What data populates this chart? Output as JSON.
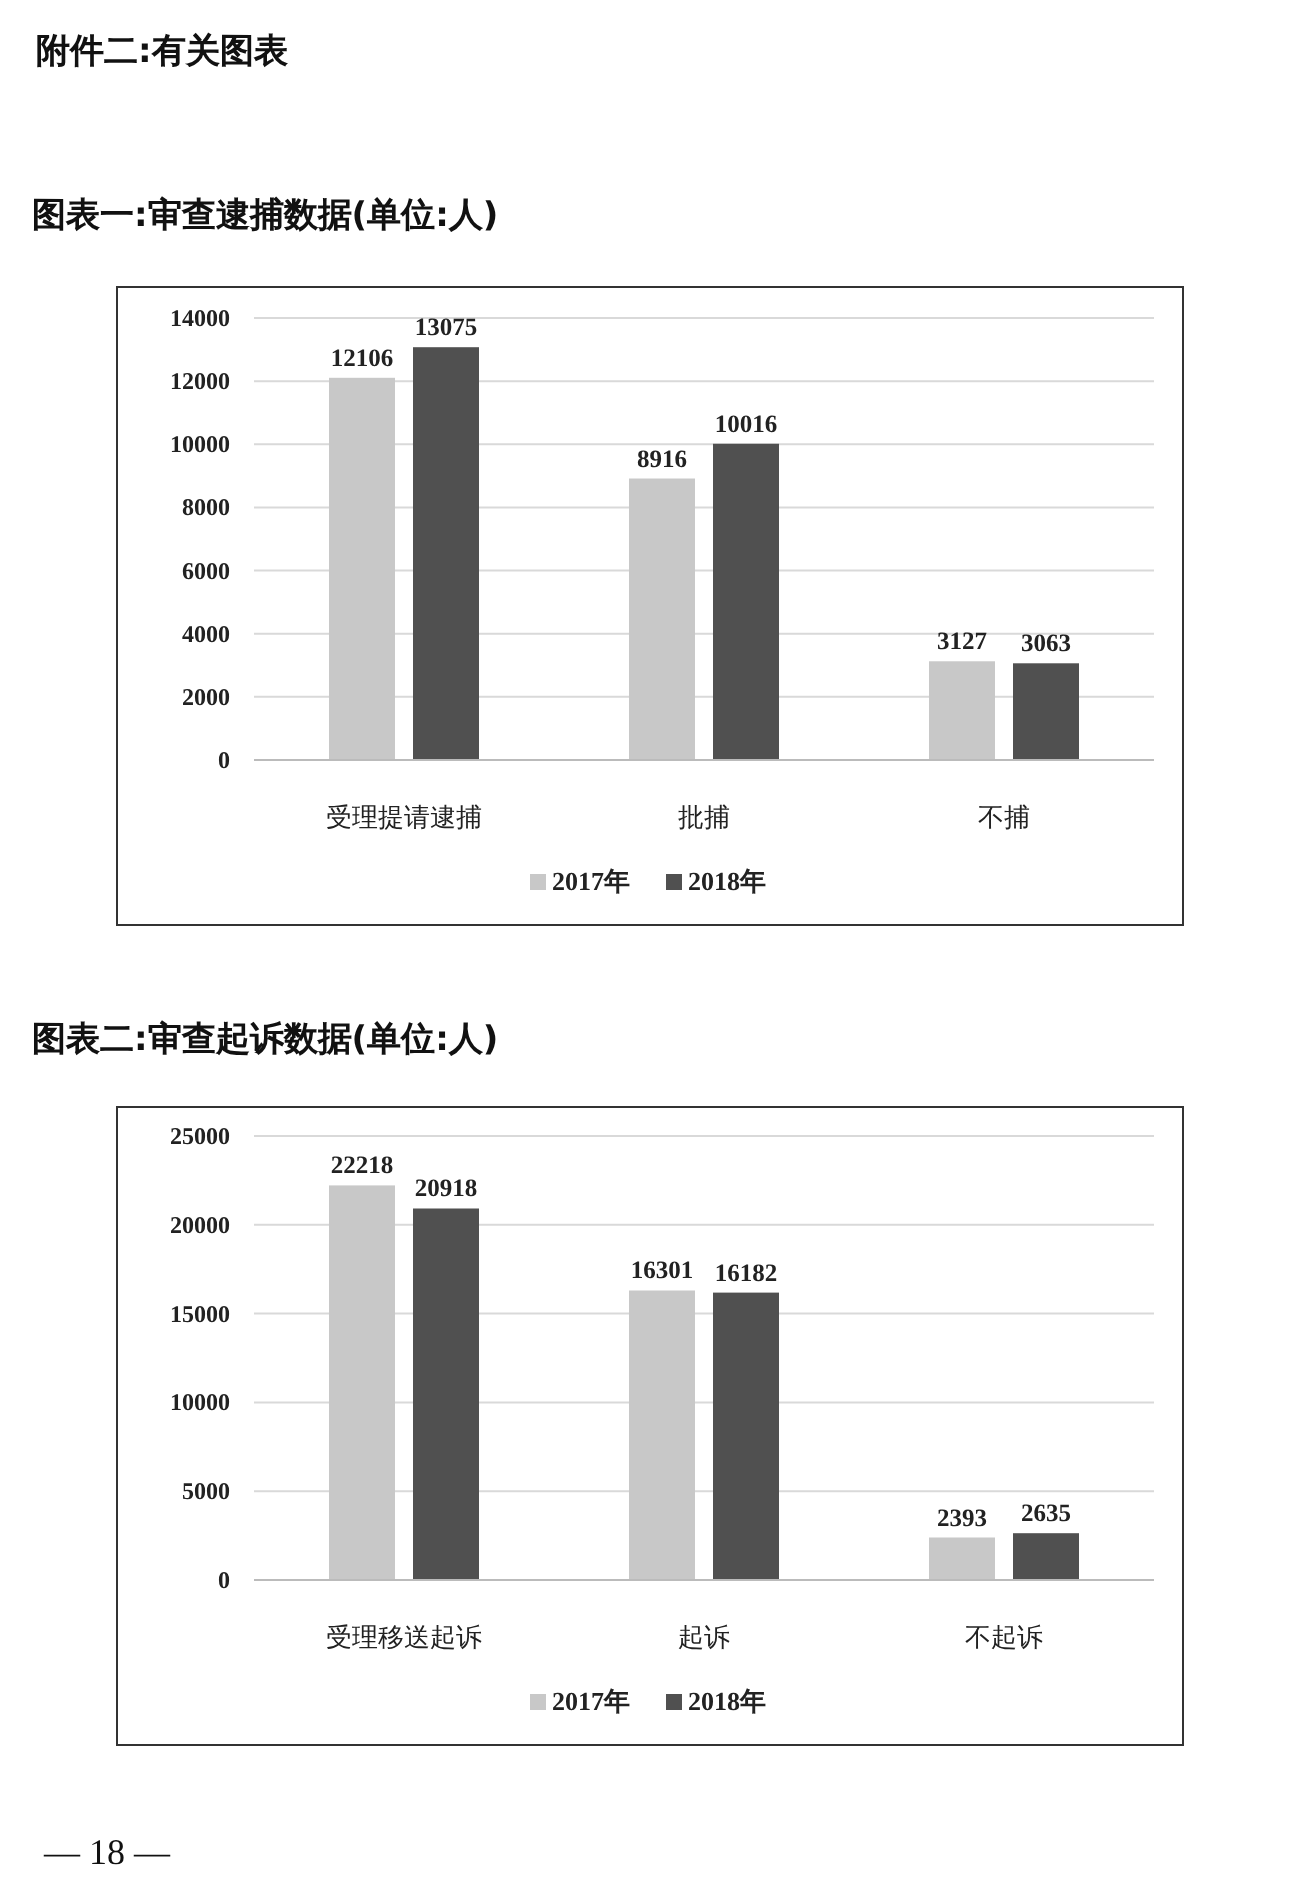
{
  "chart_data": [
    {
      "type": "bar",
      "title": "图表一:审查逮捕数据(单位:人)",
      "annotations": [
        "附件二:有关图表"
      ],
      "categories": [
        "受理提请逮捕",
        "批捕",
        "不捕"
      ],
      "series": [
        {
          "name": "2017年",
          "color": "#c8c8c8",
          "values": [
            12106,
            8916,
            3127
          ]
        },
        {
          "name": "2018年",
          "color": "#505050",
          "values": [
            13075,
            10016,
            3063
          ]
        }
      ],
      "ylim": [
        0,
        14000
      ],
      "yticks": [
        0,
        2000,
        4000,
        6000,
        8000,
        10000,
        12000,
        14000
      ],
      "grid": "y",
      "legend": "bottom",
      "data_labels": true
    },
    {
      "type": "bar",
      "title": "图表二:审查起诉数据(单位:人)",
      "annotations": [
        "— 18 —"
      ],
      "categories": [
        "受理移送起诉",
        "起诉",
        "不起诉"
      ],
      "series": [
        {
          "name": "2017年",
          "color": "#c8c8c8",
          "values": [
            22218,
            16301,
            2393
          ]
        },
        {
          "name": "2018年",
          "color": "#505050",
          "values": [
            20918,
            16182,
            2635
          ]
        }
      ],
      "ylim": [
        0,
        25000
      ],
      "yticks": [
        0,
        5000,
        10000,
        15000,
        20000,
        25000
      ],
      "grid": "y",
      "legend": "bottom",
      "data_labels": true
    }
  ]
}
